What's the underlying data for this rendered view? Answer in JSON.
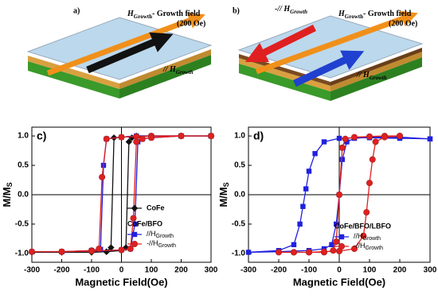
{
  "panel_a": {
    "label": "a)",
    "field_label": {
      "symbol": "H",
      "subscript": "Growth",
      "text": "- Growth field",
      "value": "(200 Oe)"
    },
    "direction_label": {
      "symbol": "// H",
      "subscript": "Growth"
    }
  },
  "panel_b": {
    "label": "b)",
    "field_label": {
      "symbol": "H",
      "subscript": "Growth",
      "text": "- Growth field",
      "value": "(200 Oe)"
    },
    "anti_label": {
      "symbol": "-// H",
      "subscript": "Growth"
    },
    "direction_label": {
      "symbol": "// H",
      "subscript": "Growth"
    }
  },
  "chart_data": [
    {
      "type": "line",
      "panel_label": "c)",
      "xlabel": "Magnetic Field(Oe)",
      "ylabel": {
        "main": "M/M",
        "subscript": "S"
      },
      "xlim": [
        -300,
        300
      ],
      "xticks": [
        -300,
        -200,
        -100,
        0,
        100,
        200,
        300
      ],
      "ylim": [
        -1.15,
        1.15
      ],
      "yticks": [
        {
          "value": -1,
          "label": "-1.0"
        },
        -0.5,
        {
          "value": 0,
          "label": "0.0"
        },
        0.5,
        {
          "value": 1,
          "label": "1.0"
        }
      ],
      "legend_group_title": "CoFe/BFO",
      "series": [
        {
          "name": "CoFe",
          "color": "#111111",
          "marker": "diamond",
          "x": [
            300,
            200,
            100,
            50,
            0,
            -25,
            -35,
            -50,
            -100,
            -200,
            -300,
            -200,
            -100,
            -50,
            0,
            15,
            25,
            35,
            50,
            100,
            200,
            300
          ],
          "values": [
            1,
            1,
            1,
            1,
            0.98,
            0.97,
            -0.9,
            -0.97,
            -0.98,
            -0.98,
            -0.98,
            -0.98,
            -0.98,
            -0.97,
            -0.95,
            -0.9,
            0.9,
            0.97,
            0.98,
            1,
            1,
            1
          ]
        },
        {
          "name": "//H",
          "name_subscript": "Growth",
          "color": "#2020e0",
          "marker": "square",
          "x": [
            300,
            200,
            100,
            50,
            0,
            -50,
            -60,
            -70,
            -100,
            -200,
            -300,
            -200,
            -100,
            0,
            30,
            45,
            55,
            70,
            100,
            200,
            300
          ],
          "values": [
            1,
            1,
            1,
            1,
            0.98,
            0.95,
            0.5,
            -0.93,
            -0.95,
            -0.97,
            -0.97,
            -0.97,
            -0.96,
            -0.94,
            -0.92,
            -0.5,
            0.9,
            0.95,
            0.97,
            1,
            1
          ]
        },
        {
          "name": "-//H",
          "name_subscript": "Growth",
          "color": "#e02020",
          "marker": "circle",
          "x": [
            300,
            200,
            100,
            50,
            0,
            -50,
            -65,
            -75,
            -100,
            -200,
            -300,
            -200,
            -100,
            0,
            30,
            40,
            50,
            70,
            100,
            200,
            300
          ],
          "values": [
            1,
            1,
            1,
            0.99,
            0.98,
            0.95,
            0.3,
            -0.92,
            -0.95,
            -0.97,
            -0.97,
            -0.97,
            -0.96,
            -0.94,
            -0.92,
            -0.4,
            0.9,
            0.95,
            0.97,
            1,
            1
          ]
        }
      ]
    },
    {
      "type": "line",
      "panel_label": "d)",
      "xlabel": "Magnetic Field(Oe)",
      "ylabel": {
        "main": "M/M",
        "subscript": "S"
      },
      "xlim": [
        -300,
        300
      ],
      "xticks": [
        -300,
        -200,
        -100,
        0,
        100,
        200,
        300
      ],
      "ylim": [
        -1.15,
        1.15
      ],
      "yticks": [
        {
          "value": -1,
          "label": "-1.0"
        },
        -0.5,
        {
          "value": 0,
          "label": "0.0"
        },
        0.5,
        {
          "value": 1,
          "label": "1.0"
        }
      ],
      "legend_group_title": "CoFe/BFO/LBFO",
      "series": [
        {
          "name": "//H",
          "name_subscript": "Growth",
          "color": "#2020e0",
          "marker": "square",
          "x": [
            300,
            200,
            100,
            50,
            0,
            -50,
            -80,
            -100,
            -110,
            -120,
            -130,
            -150,
            -200,
            -300,
            -200,
            -100,
            -50,
            -25,
            -10,
            0,
            10,
            25,
            50,
            100,
            200,
            300
          ],
          "values": [
            0.95,
            0.96,
            0.97,
            0.97,
            0.96,
            0.9,
            0.7,
            0.4,
            0.1,
            -0.2,
            -0.5,
            -0.85,
            -0.95,
            -0.98,
            -0.97,
            -0.95,
            -0.92,
            -0.85,
            -0.5,
            0,
            0.6,
            0.9,
            0.96,
            0.98,
            0.98,
            0.95
          ]
        },
        {
          "name": "-//H",
          "name_subscript": "Growth",
          "color": "#e02020",
          "marker": "circle",
          "x": [
            200,
            150,
            100,
            50,
            20,
            10,
            0,
            -10,
            -20,
            -50,
            -100,
            -150,
            -200,
            -150,
            -100,
            -50,
            0,
            50,
            80,
            90,
            100,
            110,
            120,
            150,
            200
          ],
          "values": [
            1,
            1,
            0.99,
            0.98,
            0.95,
            0.8,
            0,
            -0.8,
            -0.95,
            -0.98,
            -0.98,
            -0.98,
            -0.98,
            -0.98,
            -0.98,
            -0.97,
            -0.96,
            -0.92,
            -0.7,
            -0.3,
            0.2,
            0.6,
            0.9,
            0.98,
            1
          ]
        }
      ]
    }
  ]
}
